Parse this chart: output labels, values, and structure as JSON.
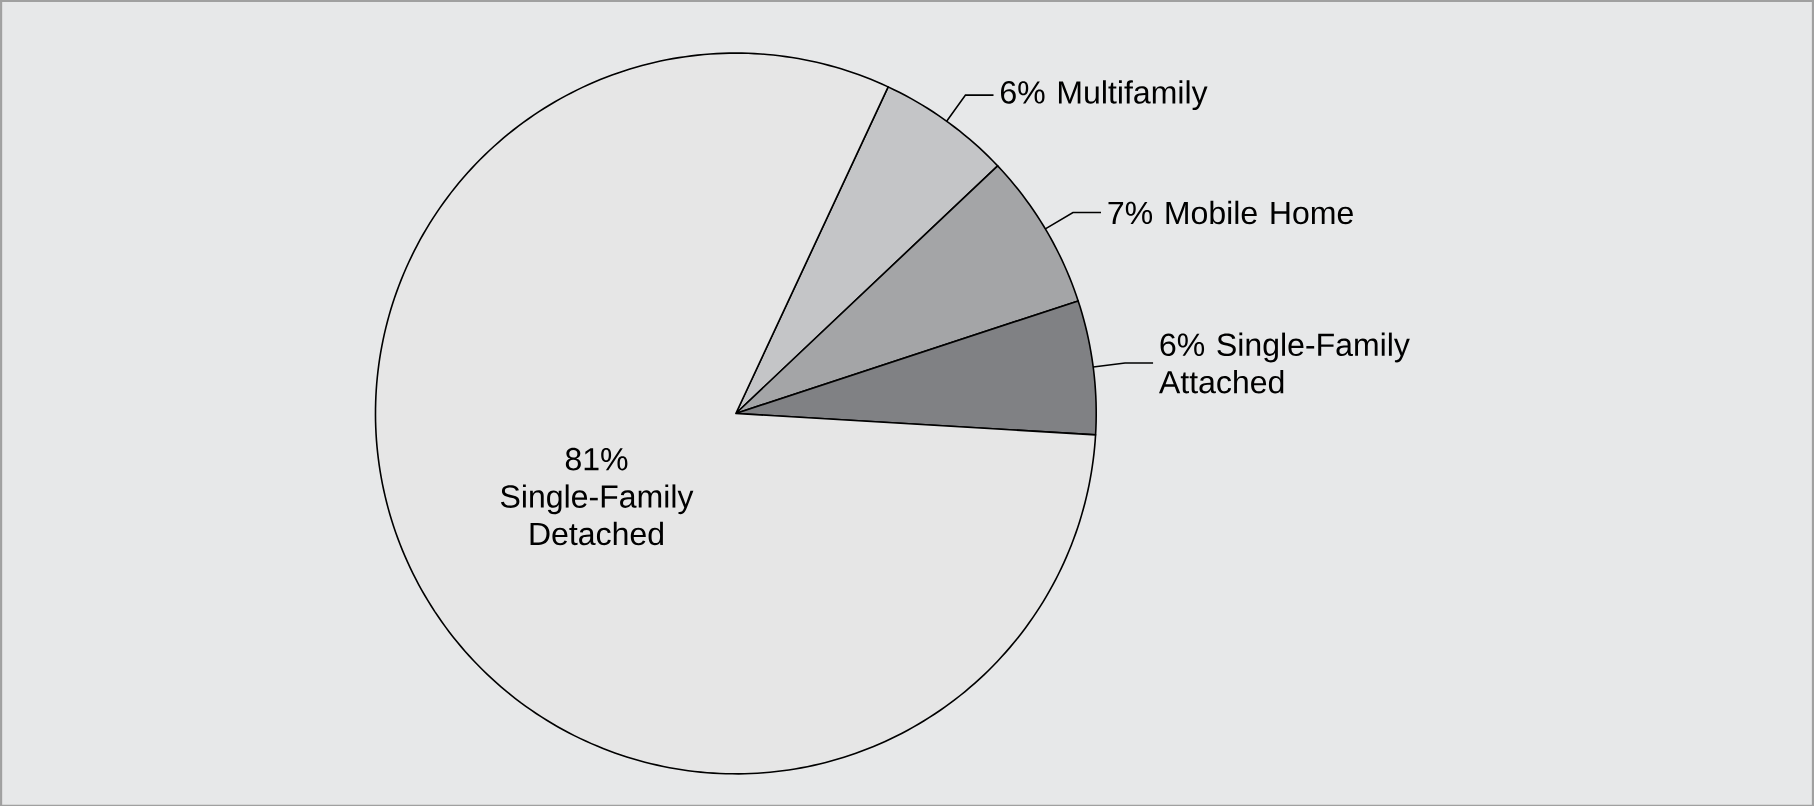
{
  "chart_data": {
    "type": "pie",
    "categories": [
      "Multifamily",
      "Mobile Home",
      "Single-Family Attached",
      "Single-Family Detached"
    ],
    "values": [
      6,
      7,
      6,
      81
    ],
    "value_labels": [
      "6%",
      "7%",
      "6%",
      "81%"
    ],
    "colors": [
      "#c4c5c7",
      "#a4a5a7",
      "#808184",
      "#e6e6e6"
    ]
  }
}
